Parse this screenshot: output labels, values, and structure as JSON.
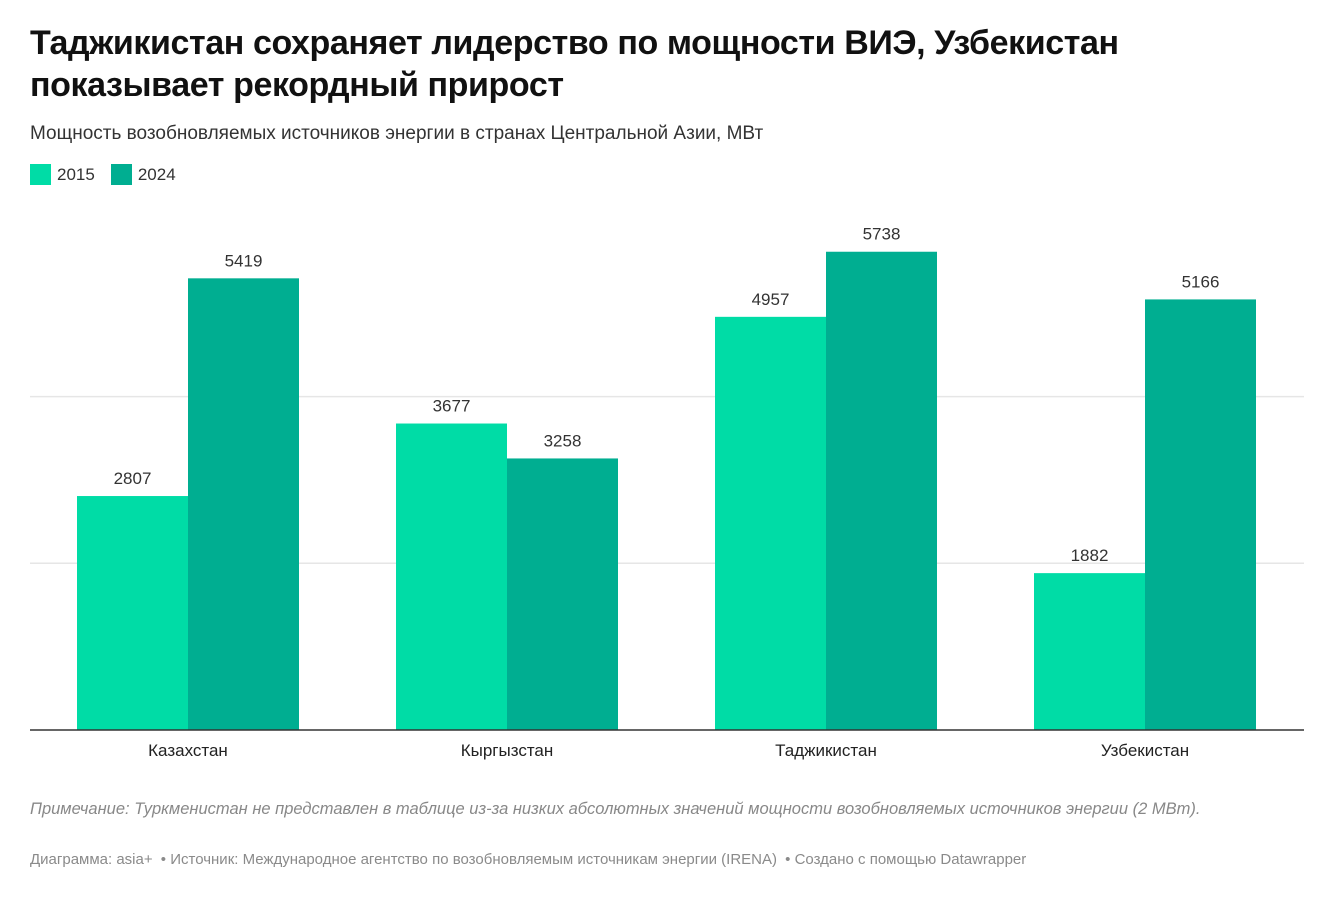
{
  "header": {
    "title": "Таджикистан сохраняет лидерство по мощности ВИЭ, Узбекистан показывает рекордный прирост",
    "subtitle": "Мощность возобновляемых источников энергии в странах Центральной Азии, МВт"
  },
  "chart_data": {
    "type": "bar",
    "title": "Таджикистан сохраняет лидерство по мощности ВИЭ, Узбекистан показывает рекордный прирост",
    "subtitle": "Мощность возобновляемых источников энергии в странах Центральной Азии, МВт",
    "categories": [
      "Казахстан",
      "Кыргызстан",
      "Таджикистан",
      "Узбекистан"
    ],
    "series": [
      {
        "name": "2015",
        "color": "#00dca6",
        "values": [
          2807,
          3677,
          4957,
          1882
        ]
      },
      {
        "name": "2024",
        "color": "#00ae91",
        "values": [
          5419,
          3258,
          5738,
          5166
        ]
      }
    ],
    "ylim": [
      0,
      6000
    ],
    "gridlines": [
      2000,
      4000
    ],
    "grid": true,
    "legend_position": "top-left",
    "data_labels": true
  },
  "note": "Примечание: Туркменистан не представлен в таблице из-за низких абсолютных значений мощности возобновляемых источников энергии (2 МВт).",
  "footer": {
    "credit": "Диаграмма: asia+",
    "source": "• Источник: Международное агентство по возобновляемым источникам энергии (IRENA)",
    "tool": "• Создано с помощью Datawrapper"
  }
}
